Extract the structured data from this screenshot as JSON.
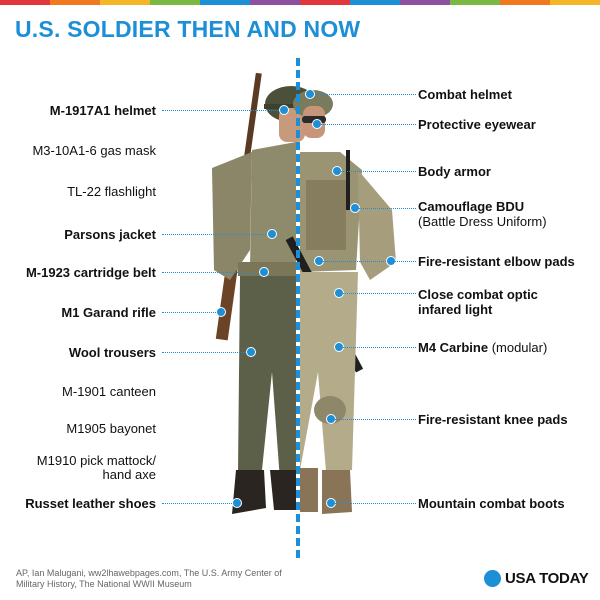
{
  "stripe_colors": [
    "#e0373c",
    "#f0781e",
    "#f4b626",
    "#7ab843",
    "#1c8fd6",
    "#8e4fa1",
    "#e0373c",
    "#1c8fd6",
    "#8e4fa1",
    "#7ab843",
    "#f0781e",
    "#f4b626"
  ],
  "accent_color": "#1c8fd6",
  "title": "U.S. SOLDIER THEN AND NOW",
  "labels_left": [
    {
      "text": "M-1917A1 helmet",
      "bold": true
    },
    {
      "text": "M3-10A1-6 gas mask",
      "bold": false
    },
    {
      "text": "TL-22 flashlight",
      "bold": false
    },
    {
      "text": "Parsons jacket",
      "bold": true
    },
    {
      "text": "M-1923 cartridge belt",
      "bold": true
    },
    {
      "text": "M1 Garand rifle",
      "bold": true
    },
    {
      "text": "Wool trousers",
      "bold": true
    },
    {
      "text": "M-1901 canteen",
      "bold": false
    },
    {
      "text": "M1905 bayonet",
      "bold": false
    },
    {
      "text": "M1910 pick mattock/",
      "bold": false
    },
    {
      "text": "hand axe",
      "bold": false
    },
    {
      "text": "Russet leather shoes",
      "bold": true
    }
  ],
  "labels_right": [
    {
      "text": "Combat helmet"
    },
    {
      "text": "Protective eyewear"
    },
    {
      "text": "Body armor"
    },
    {
      "text": "Camouflage BDU",
      "sub": "(Battle Dress Uniform)"
    },
    {
      "text": "Fire-resistant elbow pads"
    },
    {
      "text": "Close combat optic"
    },
    {
      "text": "infared light"
    },
    {
      "text": "M4 Carbine",
      "suffix": " (modular)"
    },
    {
      "text": "Fire-resistant knee pads"
    },
    {
      "text": "Mountain combat boots"
    }
  ],
  "source": "AP, Ian Malugani, ww2lhawebpages.com, The U.S. Army Center of Military History, The National WWII Museum",
  "brand": "USA TODAY",
  "icons": [
    "soldier-then-figure",
    "soldier-now-figure",
    "usa-today-dot-icon"
  ]
}
